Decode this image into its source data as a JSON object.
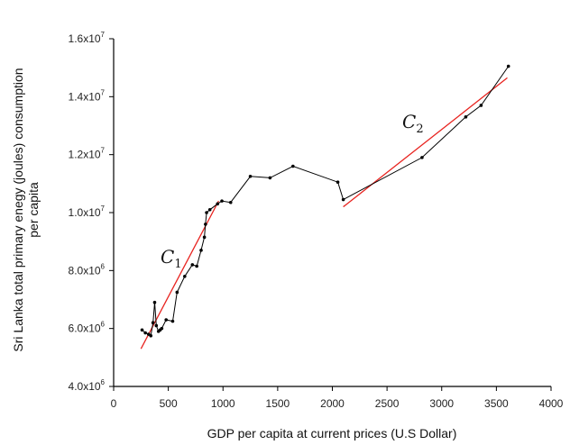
{
  "chart_data": {
    "type": "scatter",
    "title": "",
    "xlabel": "GDP per capita at current prices (U.S Dollar)",
    "ylabel_lines": [
      "Sri Lanka total primary enegy (joules) consumption",
      "per capita"
    ],
    "xlim": [
      0,
      4000
    ],
    "ylim": [
      4000000,
      16000000
    ],
    "x_ticks": [
      0,
      500,
      1000,
      1500,
      2000,
      2500,
      3000,
      3500,
      4000
    ],
    "x_tick_labels": [
      "0",
      "500",
      "1000",
      "1500",
      "2000",
      "2500",
      "3000",
      "3500",
      "4000"
    ],
    "y_ticks": [
      4000000,
      6000000,
      8000000,
      10000000,
      12000000,
      14000000,
      16000000
    ],
    "y_tick_labels": [
      {
        "mantissa": "4.0x10",
        "exp": "6"
      },
      {
        "mantissa": "6.0x10",
        "exp": "6"
      },
      {
        "mantissa": "8.0x10",
        "exp": "6"
      },
      {
        "mantissa": "1.0x10",
        "exp": "7"
      },
      {
        "mantissa": "1.2x10",
        "exp": "7"
      },
      {
        "mantissa": "1.4x10",
        "exp": "7"
      },
      {
        "mantissa": "1.6x10",
        "exp": "7"
      }
    ],
    "grid": false,
    "series": [
      {
        "style": "black line with dot markers",
        "color": "#000000",
        "points": [
          [
            260,
            5950000
          ],
          [
            290,
            5850000
          ],
          [
            320,
            5800000
          ],
          [
            340,
            5750000
          ],
          [
            360,
            6200000
          ],
          [
            375,
            6900000
          ],
          [
            390,
            6100000
          ],
          [
            410,
            5900000
          ],
          [
            425,
            5950000
          ],
          [
            440,
            6000000
          ],
          [
            480,
            6300000
          ],
          [
            540,
            6250000
          ],
          [
            580,
            7250000
          ],
          [
            650,
            7800000
          ],
          [
            720,
            8200000
          ],
          [
            760,
            8150000
          ],
          [
            800,
            8700000
          ],
          [
            830,
            9150000
          ],
          [
            840,
            9600000
          ],
          [
            850,
            10000000
          ],
          [
            880,
            10100000
          ],
          [
            950,
            10300000
          ],
          [
            990,
            10400000
          ],
          [
            1070,
            10350000
          ],
          [
            1250,
            11250000
          ],
          [
            1430,
            11200000
          ],
          [
            1640,
            11600000
          ],
          [
            2050,
            11050000
          ],
          [
            2100,
            10450000
          ],
          [
            2820,
            11900000
          ],
          [
            3220,
            13300000
          ],
          [
            3360,
            13700000
          ],
          [
            3610,
            15050000
          ]
        ]
      }
    ],
    "fit_lines": [
      {
        "label": "C",
        "subscript": "1",
        "color": "#e8231f",
        "from": [
          250,
          5300000
        ],
        "to": [
          960,
          10400000
        ]
      },
      {
        "label": "C",
        "subscript": "2",
        "color": "#e8231f",
        "from": [
          2100,
          10200000
        ],
        "to": [
          3600,
          14650000
        ]
      }
    ]
  }
}
